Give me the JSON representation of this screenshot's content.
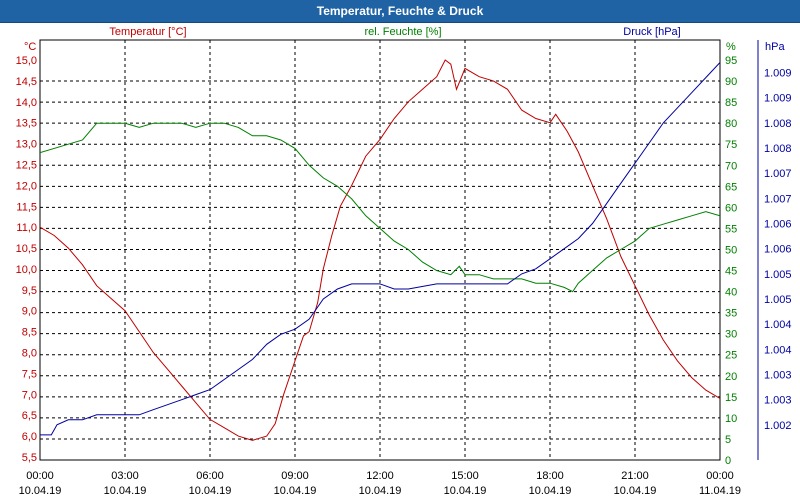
{
  "window": {
    "title": "Temperatur, Feuchte & Druck"
  },
  "chart_data": {
    "type": "line",
    "title": "Temperatur, Feuchte & Druck",
    "colors": {
      "temperature": "#c00000",
      "humidity": "#008000",
      "pressure": "#0000a0",
      "grid": "#000000",
      "frame": "#000000"
    },
    "x_axis": {
      "range_hours": [
        0,
        24
      ],
      "ticks": [
        {
          "h": 0,
          "time": "00:00",
          "date": "10.04.19"
        },
        {
          "h": 3,
          "time": "03:00",
          "date": "10.04.19"
        },
        {
          "h": 6,
          "time": "06:00",
          "date": "10.04.19"
        },
        {
          "h": 9,
          "time": "09:00",
          "date": "10.04.19"
        },
        {
          "h": 12,
          "time": "12:00",
          "date": "10.04.19"
        },
        {
          "h": 15,
          "time": "15:00",
          "date": "10.04.19"
        },
        {
          "h": 18,
          "time": "18:00",
          "date": "10.04.19"
        },
        {
          "h": 21,
          "time": "21:00",
          "date": "10.04.19"
        },
        {
          "h": 24,
          "time": "00:00",
          "date": "11.04.19"
        }
      ]
    },
    "axes": {
      "temperature": {
        "unit": "°C",
        "label": "Temperatur [°C]",
        "range": [
          5.5,
          15.0
        ],
        "ticks": [
          "15,0",
          "14,5",
          "14,0",
          "13,5",
          "13,0",
          "12,5",
          "12,0",
          "11,5",
          "11,0",
          "10,5",
          "10,0",
          "9,5",
          "9,0",
          "8,5",
          "8,0",
          "7,5",
          "7,0",
          "6,5",
          "6,0",
          "5,5"
        ]
      },
      "humidity": {
        "unit": "%",
        "label": "rel. Feuchte [%]",
        "range": [
          0,
          95
        ],
        "ticks": [
          "95",
          "90",
          "85",
          "80",
          "75",
          "70",
          "65",
          "60",
          "55",
          "50",
          "45",
          "40",
          "35",
          "30",
          "25",
          "20",
          "15",
          "10",
          "5",
          "0"
        ]
      },
      "pressure": {
        "unit": "hPa",
        "label": "Druck [hPa]",
        "range": [
          1001.5,
          1009.25
        ],
        "ticks": [
          "1.009",
          "1.009",
          "1.008",
          "1.008",
          "1.007",
          "1.007",
          "1.006",
          "1.006",
          "1.005",
          "1.005",
          "1.004",
          "1.004",
          "1.003",
          "1.003",
          "1.002"
        ]
      }
    },
    "series": [
      {
        "name": "Temperatur [°C]",
        "axis": "temperature",
        "points": [
          [
            0,
            11.0
          ],
          [
            0.5,
            10.8
          ],
          [
            1,
            10.5
          ],
          [
            1.5,
            10.1
          ],
          [
            2,
            9.6
          ],
          [
            2.5,
            9.3
          ],
          [
            3,
            9.0
          ],
          [
            3.5,
            8.5
          ],
          [
            4,
            8.0
          ],
          [
            4.5,
            7.6
          ],
          [
            5,
            7.2
          ],
          [
            5.5,
            6.8
          ],
          [
            6,
            6.4
          ],
          [
            6.5,
            6.2
          ],
          [
            7,
            6.0
          ],
          [
            7.5,
            5.9
          ],
          [
            8,
            6.0
          ],
          [
            8.3,
            6.3
          ],
          [
            8.6,
            7.0
          ],
          [
            9,
            7.8
          ],
          [
            9.3,
            8.4
          ],
          [
            9.5,
            8.5
          ],
          [
            9.8,
            9.2
          ],
          [
            10,
            10.0
          ],
          [
            10.3,
            10.8
          ],
          [
            10.6,
            11.5
          ],
          [
            11,
            12.0
          ],
          [
            11.5,
            12.7
          ],
          [
            12,
            13.1
          ],
          [
            12.5,
            13.6
          ],
          [
            13,
            14.0
          ],
          [
            13.5,
            14.3
          ],
          [
            14,
            14.6
          ],
          [
            14.3,
            15.0
          ],
          [
            14.5,
            14.9
          ],
          [
            14.7,
            14.3
          ],
          [
            15,
            14.8
          ],
          [
            15.5,
            14.6
          ],
          [
            16,
            14.5
          ],
          [
            16.5,
            14.3
          ],
          [
            17,
            13.8
          ],
          [
            17.5,
            13.6
          ],
          [
            18,
            13.5
          ],
          [
            18.2,
            13.7
          ],
          [
            18.6,
            13.3
          ],
          [
            19,
            12.8
          ],
          [
            19.5,
            12.0
          ],
          [
            20,
            11.2
          ],
          [
            20.5,
            10.3
          ],
          [
            21,
            9.6
          ],
          [
            21.5,
            8.9
          ],
          [
            22,
            8.3
          ],
          [
            22.5,
            7.8
          ],
          [
            23,
            7.4
          ],
          [
            23.5,
            7.1
          ],
          [
            24,
            6.9
          ]
        ]
      },
      {
        "name": "rel. Feuchte [%]",
        "axis": "humidity",
        "points": [
          [
            0,
            73
          ],
          [
            1,
            75
          ],
          [
            1.5,
            76
          ],
          [
            2,
            80
          ],
          [
            3,
            80
          ],
          [
            3.5,
            79
          ],
          [
            4,
            80
          ],
          [
            5,
            80
          ],
          [
            5.5,
            79
          ],
          [
            6,
            80
          ],
          [
            6.5,
            80
          ],
          [
            7,
            79
          ],
          [
            7.5,
            77
          ],
          [
            8,
            77
          ],
          [
            8.5,
            76
          ],
          [
            9,
            74
          ],
          [
            9.5,
            70
          ],
          [
            10,
            67
          ],
          [
            10.5,
            65
          ],
          [
            11,
            62
          ],
          [
            11.5,
            58
          ],
          [
            12,
            55
          ],
          [
            12.5,
            52
          ],
          [
            13,
            50
          ],
          [
            13.5,
            47
          ],
          [
            14,
            45
          ],
          [
            14.5,
            44
          ],
          [
            14.8,
            46
          ],
          [
            15,
            44
          ],
          [
            15.5,
            44
          ],
          [
            16,
            43
          ],
          [
            16.5,
            43
          ],
          [
            17,
            43
          ],
          [
            17.5,
            42
          ],
          [
            18,
            42
          ],
          [
            18.5,
            41
          ],
          [
            18.8,
            40
          ],
          [
            19,
            42
          ],
          [
            19.5,
            45
          ],
          [
            20,
            48
          ],
          [
            20.5,
            50
          ],
          [
            21,
            52
          ],
          [
            21.5,
            55
          ],
          [
            22,
            56
          ],
          [
            22.5,
            57
          ],
          [
            23,
            58
          ],
          [
            23.5,
            59
          ],
          [
            24,
            58
          ]
        ]
      },
      {
        "name": "Druck [hPa]",
        "axis": "pressure",
        "points": [
          [
            0,
            1001.8
          ],
          [
            0.4,
            1001.8
          ],
          [
            0.6,
            1002.0
          ],
          [
            1,
            1002.1
          ],
          [
            1.5,
            1002.1
          ],
          [
            2,
            1002.2
          ],
          [
            3,
            1002.2
          ],
          [
            3.5,
            1002.2
          ],
          [
            4,
            1002.3
          ],
          [
            4.5,
            1002.4
          ],
          [
            5,
            1002.5
          ],
          [
            5.5,
            1002.6
          ],
          [
            6,
            1002.7
          ],
          [
            6.5,
            1002.9
          ],
          [
            7,
            1003.1
          ],
          [
            7.5,
            1003.3
          ],
          [
            8,
            1003.6
          ],
          [
            8.5,
            1003.8
          ],
          [
            9,
            1003.9
          ],
          [
            9.5,
            1004.1
          ],
          [
            10,
            1004.5
          ],
          [
            10.5,
            1004.7
          ],
          [
            11,
            1004.8
          ],
          [
            12,
            1004.8
          ],
          [
            12.5,
            1004.7
          ],
          [
            13,
            1004.7
          ],
          [
            14,
            1004.8
          ],
          [
            15,
            1004.8
          ],
          [
            16,
            1004.8
          ],
          [
            16.5,
            1004.8
          ],
          [
            17,
            1005.0
          ],
          [
            17.5,
            1005.1
          ],
          [
            18,
            1005.3
          ],
          [
            18.5,
            1005.5
          ],
          [
            19,
            1005.7
          ],
          [
            19.5,
            1006.0
          ],
          [
            20,
            1006.4
          ],
          [
            20.5,
            1006.8
          ],
          [
            21,
            1007.2
          ],
          [
            21.5,
            1007.6
          ],
          [
            22,
            1008.0
          ],
          [
            22.5,
            1008.3
          ],
          [
            23,
            1008.6
          ],
          [
            23.5,
            1008.9
          ],
          [
            24,
            1009.2
          ]
        ]
      }
    ]
  }
}
